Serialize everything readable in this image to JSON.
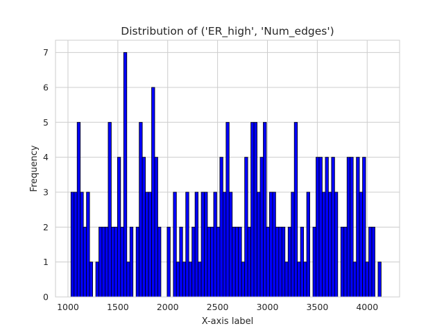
{
  "chart_data": {
    "type": "bar",
    "title": "Distribution of ('ER_high', 'Num_edges')",
    "xlabel": "X-axis label",
    "ylabel": "Frequency",
    "xlim": [
      875,
      4325
    ],
    "ylim": [
      0,
      7.35
    ],
    "xticks": [
      1000,
      1500,
      2000,
      2500,
      3000,
      3500,
      4000
    ],
    "yticks": [
      0,
      1,
      2,
      3,
      4,
      5,
      6,
      7
    ],
    "grid": true,
    "bin_start": 1030,
    "bin_width": 31.1,
    "values": [
      3,
      3,
      5,
      3,
      2,
      3,
      1,
      0,
      1,
      2,
      2,
      2,
      5,
      2,
      2,
      4,
      2,
      7,
      1,
      2,
      0,
      2,
      5,
      4,
      3,
      3,
      6,
      4,
      2,
      0,
      0,
      2,
      0,
      3,
      1,
      2,
      1,
      3,
      1,
      2,
      3,
      1,
      3,
      3,
      2,
      2,
      3,
      2,
      4,
      3,
      5,
      3,
      2,
      2,
      2,
      1,
      4,
      2,
      5,
      5,
      3,
      4,
      5,
      2,
      3,
      3,
      2,
      2,
      2,
      1,
      2,
      3,
      5,
      1,
      2,
      1,
      3,
      0,
      2,
      4,
      4,
      3,
      4,
      3,
      4,
      3,
      0,
      2,
      2,
      4,
      4,
      1,
      4,
      3,
      4,
      1,
      2,
      2,
      0,
      1
    ]
  }
}
